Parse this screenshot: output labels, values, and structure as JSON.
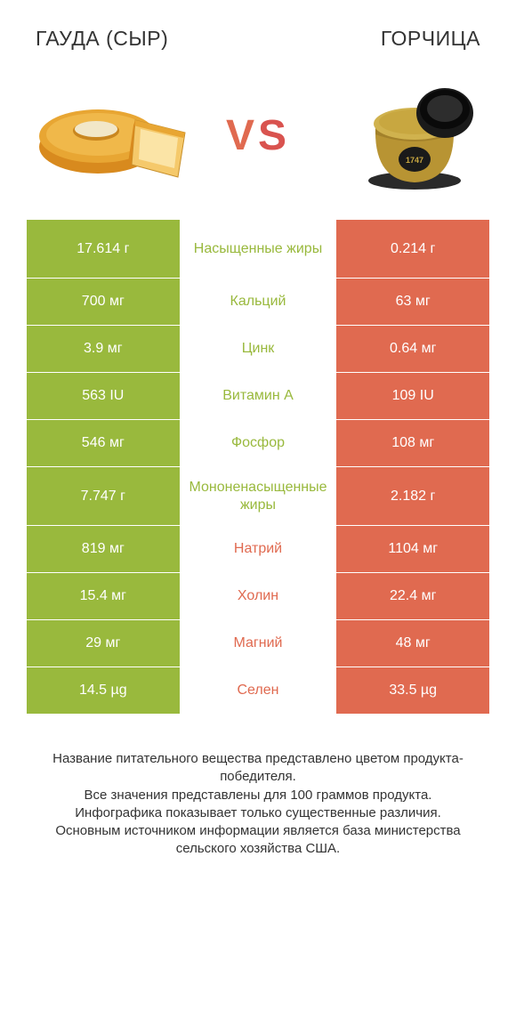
{
  "header": {
    "left_title": "ГАУДА (СЫР)",
    "right_title": "ГОРЧИЦА"
  },
  "vs": {
    "v": "V",
    "s": "S"
  },
  "colors": {
    "left_cell": "#99b93d",
    "right_cell": "#e06a50",
    "left_text": "#99b93d",
    "right_text": "#e06a50",
    "mid_bg": "#ffffff",
    "cell_text": "#ffffff"
  },
  "rows": [
    {
      "left": "17.614 г",
      "mid": "Насыщенные жиры",
      "right": "0.214 г",
      "winner": "left",
      "tall": true
    },
    {
      "left": "700 мг",
      "mid": "Кальций",
      "right": "63 мг",
      "winner": "left",
      "tall": false
    },
    {
      "left": "3.9 мг",
      "mid": "Цинк",
      "right": "0.64 мг",
      "winner": "left",
      "tall": false
    },
    {
      "left": "563 IU",
      "mid": "Витамин A",
      "right": "109 IU",
      "winner": "left",
      "tall": false
    },
    {
      "left": "546 мг",
      "mid": "Фосфор",
      "right": "108 мг",
      "winner": "left",
      "tall": false
    },
    {
      "left": "7.747 г",
      "mid": "Мононенасыщенные жиры",
      "right": "2.182 г",
      "winner": "left",
      "tall": true
    },
    {
      "left": "819 мг",
      "mid": "Натрий",
      "right": "1104 мг",
      "winner": "right",
      "tall": false
    },
    {
      "left": "15.4 мг",
      "mid": "Холин",
      "right": "22.4 мг",
      "winner": "right",
      "tall": false
    },
    {
      "left": "29 мг",
      "mid": "Магний",
      "right": "48 мг",
      "winner": "right",
      "tall": false
    },
    {
      "left": "14.5 µg",
      "mid": "Селен",
      "right": "33.5 µg",
      "winner": "right",
      "tall": false
    }
  ],
  "footer": {
    "line1": "Название питательного вещества представлено цветом продукта-победителя.",
    "line2": "Все значения представлены для 100 граммов продукта.",
    "line3": "Инфографика показывает только существенные различия.",
    "line4": "Основным источником информации является база министерства сельского хозяйства США."
  }
}
